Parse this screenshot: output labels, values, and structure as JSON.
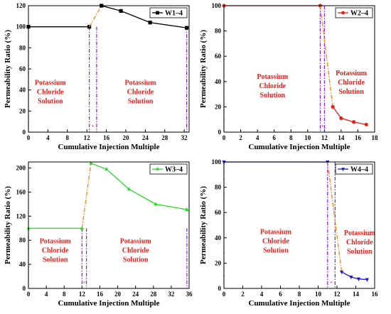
{
  "chart_data": [
    {
      "type": "line",
      "legend": "W1–4",
      "legend_placement": "top-right",
      "color": "#000000",
      "marker": "square",
      "xlabel": "Cumulative Injection Multiple",
      "ylabel": "Permeability Ratio (%)",
      "xlim": [
        0,
        33
      ],
      "ylim": [
        0,
        120
      ],
      "xticks": [
        0,
        4,
        8,
        12,
        16,
        20,
        24,
        28,
        32
      ],
      "yticks": [
        0,
        20,
        40,
        60,
        80,
        100,
        120
      ],
      "phase1": {
        "x": [
          0,
          12.5
        ],
        "y": [
          100,
          100
        ]
      },
      "transition": {
        "x": [
          12.5,
          15
        ],
        "y": [
          100,
          120
        ]
      },
      "phase2": {
        "x": [
          15,
          19,
          25,
          32.5
        ],
        "y": [
          120,
          115,
          104,
          99
        ]
      },
      "vlines": [
        0,
        12.5,
        14,
        32.5
      ],
      "segment_mark": "*",
      "annotations": [
        {
          "lines": [
            "Potassium",
            "Chloride",
            "Solution"
          ],
          "x": 4.5,
          "y": 45
        },
        {
          "lines": [
            "Potassium",
            "Chloride",
            "Solution"
          ],
          "x": 23,
          "y": 45
        }
      ]
    },
    {
      "type": "line",
      "legend": "W2–4",
      "legend_placement": "top-right",
      "color": "#e8201c",
      "marker": "circle",
      "xlabel": "Cumulative Injection Multiple",
      "ylabel": "Permeability Ratio (%)",
      "xlim": [
        0,
        18
      ],
      "ylim": [
        0,
        100
      ],
      "xticks": [
        0,
        2,
        4,
        6,
        8,
        10,
        12,
        14,
        16,
        18
      ],
      "yticks": [
        0,
        20,
        40,
        60,
        80,
        100
      ],
      "phase1": {
        "x": [
          0,
          11.5
        ],
        "y": [
          100,
          100
        ]
      },
      "transition": {
        "x": [
          11.5,
          13
        ],
        "y": [
          100,
          20
        ]
      },
      "phase2": {
        "x": [
          13,
          14,
          15.5,
          17
        ],
        "y": [
          20,
          11,
          8,
          6
        ]
      },
      "vlines": [
        0,
        11.5,
        12
      ],
      "segment_mark": "*",
      "annotations": [
        {
          "lines": [
            "Potassium",
            "Chloride",
            "Solution"
          ],
          "x": 5.8,
          "y": 42
        },
        {
          "lines": [
            "Potassium",
            "Chloride",
            "Solution"
          ],
          "x": 15.2,
          "y": 45
        }
      ]
    },
    {
      "type": "line",
      "legend": "W3–4",
      "legend_placement": "top-right",
      "color": "#22dd22",
      "marker": "triangle",
      "xlabel": "Cumulative Injection Multiple",
      "ylabel": "Permeability Ratio (%)",
      "xlim": [
        0,
        36
      ],
      "ylim": [
        0,
        210
      ],
      "xticks": [
        0,
        4,
        8,
        12,
        16,
        20,
        24,
        28,
        32,
        36
      ],
      "yticks": [
        0,
        40,
        80,
        120,
        160,
        200
      ],
      "phase1": {
        "x": [
          0,
          12
        ],
        "y": [
          100,
          100
        ]
      },
      "transition": {
        "x": [
          12,
          14
        ],
        "y": [
          100,
          208
        ]
      },
      "phase2": {
        "x": [
          14,
          17.5,
          22.5,
          28.5,
          35.5
        ],
        "y": [
          208,
          198,
          165,
          140,
          131
        ]
      },
      "vlines": [
        0,
        12,
        13,
        35.5
      ],
      "segment_mark": "*",
      "annotations": [
        {
          "lines": [
            "Potassium",
            "Chloride",
            "Solution"
          ],
          "x": 6,
          "y": 75
        },
        {
          "lines": [
            "Potassium",
            "Chloride",
            "Solution"
          ],
          "x": 24,
          "y": 75
        }
      ]
    },
    {
      "type": "line",
      "legend": "W4–4",
      "legend_placement": "top-right",
      "color": "#1a1acc",
      "marker": "triangle-down",
      "xlabel": "Cumulative Injection Multiple",
      "ylabel": "Permeability Ratio (%)",
      "xlim": [
        0,
        16
      ],
      "ylim": [
        0,
        100
      ],
      "xticks": [
        0,
        2,
        4,
        6,
        8,
        10,
        12,
        14,
        16
      ],
      "yticks": [
        0,
        20,
        40,
        60,
        80,
        100
      ],
      "phase1": {
        "x": [
          0,
          11
        ],
        "y": [
          100,
          100
        ]
      },
      "transition": {
        "x": [
          11,
          12.5
        ],
        "y": [
          100,
          13
        ]
      },
      "phase2": {
        "x": [
          12.5,
          13.5,
          14.3,
          15.2
        ],
        "y": [
          13,
          9,
          7.5,
          7
        ]
      },
      "vlines": [
        0,
        11,
        11.8
      ],
      "segment_mark": "*",
      "annotations": [
        {
          "lines": [
            "Potassium",
            "Chloride",
            "Solution"
          ],
          "x": 5.5,
          "y": 43
        },
        {
          "lines": [
            "Potassium",
            "Chloride",
            "Solution"
          ],
          "x": 14.4,
          "y": 42
        }
      ]
    }
  ]
}
